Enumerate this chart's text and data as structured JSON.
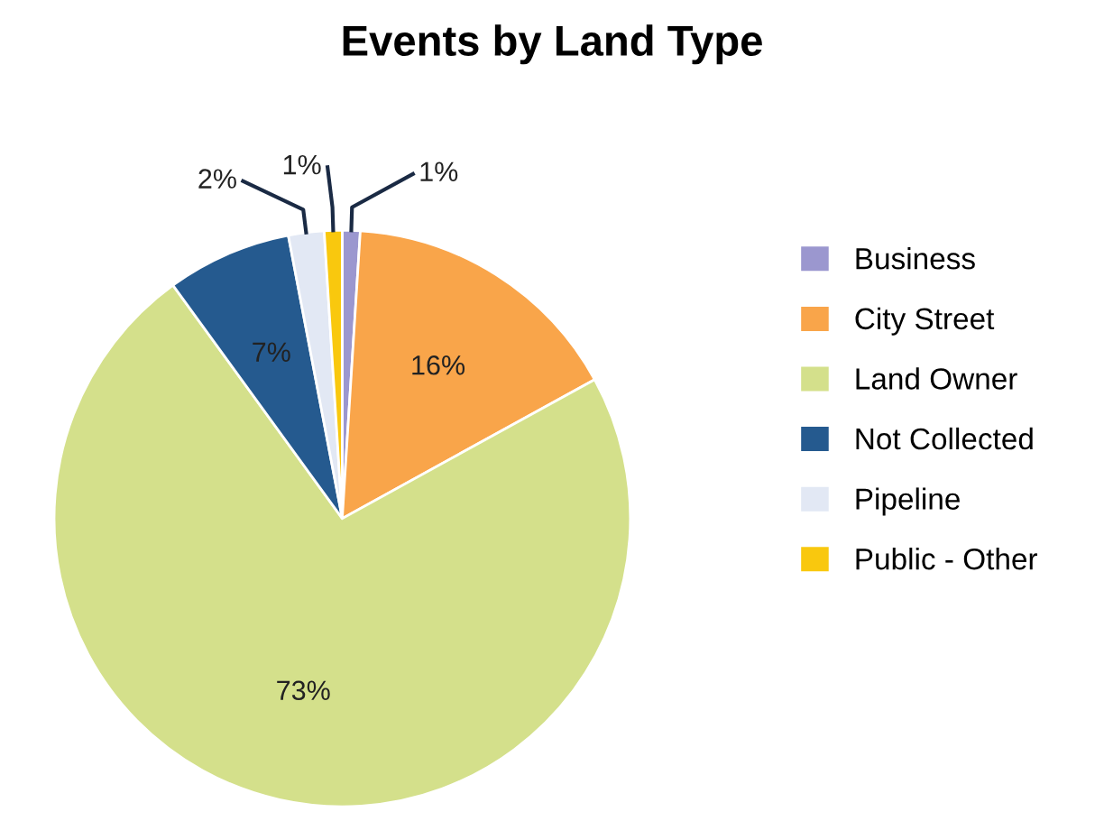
{
  "chart_data": {
    "type": "pie",
    "title": "Events by Land Type",
    "categories": [
      "Business",
      "City Street",
      "Land Owner",
      "Not Collected",
      "Pipeline",
      "Public - Other"
    ],
    "values": [
      1,
      16,
      73,
      7,
      2,
      1
    ],
    "colors": [
      "#9b97cf",
      "#f9a54a",
      "#d4e08b",
      "#255a8f",
      "#e2e8f4",
      "#f9c80e"
    ],
    "value_labels": [
      "1%",
      "16%",
      "73%",
      "7%",
      "2%",
      "1%"
    ],
    "legend": "right"
  }
}
